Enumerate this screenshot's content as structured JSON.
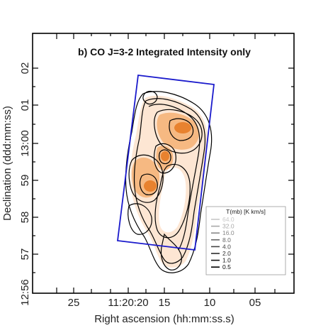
{
  "figure": {
    "panel_title": "b) CO J=3-2 Integrated Intensity only",
    "x_axis_title": "Right ascension (hh:mm:ss.s)",
    "y_axis_title": "Declination (ddd:mm:ss)",
    "x_tick_labels": [
      "25",
      "11:20:20",
      "15",
      "10",
      "05"
    ],
    "y_tick_labels": [
      "02",
      "01",
      "13:00",
      "59",
      "58",
      "57",
      "12:56"
    ],
    "legend": {
      "title": "T(mb) [K km/s]",
      "entries": [
        {
          "label": "64.0",
          "color": "#c8c8c8"
        },
        {
          "label": "32.0",
          "color": "#a8a8a8"
        },
        {
          "label": "16.0",
          "color": "#888888"
        },
        {
          "label": "8.0",
          "color": "#666666"
        },
        {
          "label": "4.0",
          "color": "#444444"
        },
        {
          "label": "2.0",
          "color": "#2a2a2a"
        },
        {
          "label": "1.0",
          "color": "#111111"
        },
        {
          "label": "0.5",
          "color": "#000000"
        }
      ]
    },
    "colors": {
      "frame": "#000000",
      "footprint_box": "#1a1acc",
      "emission_faint": "#fde6d3",
      "emission_mid": "#f6b982",
      "emission_peak": "#e8822f"
    }
  }
}
